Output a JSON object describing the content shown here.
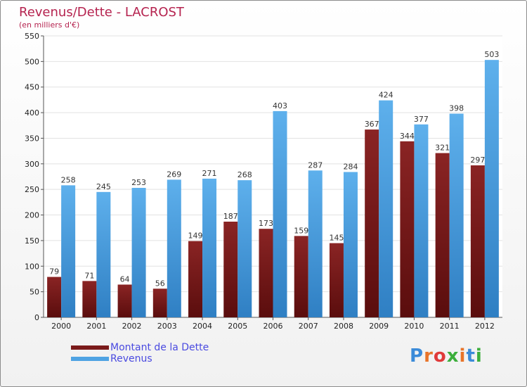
{
  "title": "Revenus/Dette - LACROST",
  "subtitle": "(en milliers d'€)",
  "colors": {
    "dette": "#7a1a1a",
    "revenus": "#4fa3e3"
  },
  "logo": "Proxiti",
  "chart_data": {
    "type": "bar",
    "categories": [
      "2000",
      "2001",
      "2002",
      "2003",
      "2004",
      "2005",
      "2006",
      "2007",
      "2008",
      "2009",
      "2010",
      "2011",
      "2012"
    ],
    "series": [
      {
        "name": "Montant de la Dette",
        "values": [
          79,
          71,
          64,
          56,
          149,
          187,
          173,
          159,
          145,
          367,
          344,
          321,
          297
        ]
      },
      {
        "name": "Revenus",
        "values": [
          258,
          245,
          253,
          269,
          271,
          268,
          403,
          287,
          284,
          424,
          377,
          398,
          503
        ]
      }
    ],
    "ylim": [
      0,
      550
    ],
    "yticks": [
      0,
      50,
      100,
      150,
      200,
      250,
      300,
      350,
      400,
      450,
      500,
      550
    ],
    "grid": true,
    "legend": "bottom-left"
  }
}
